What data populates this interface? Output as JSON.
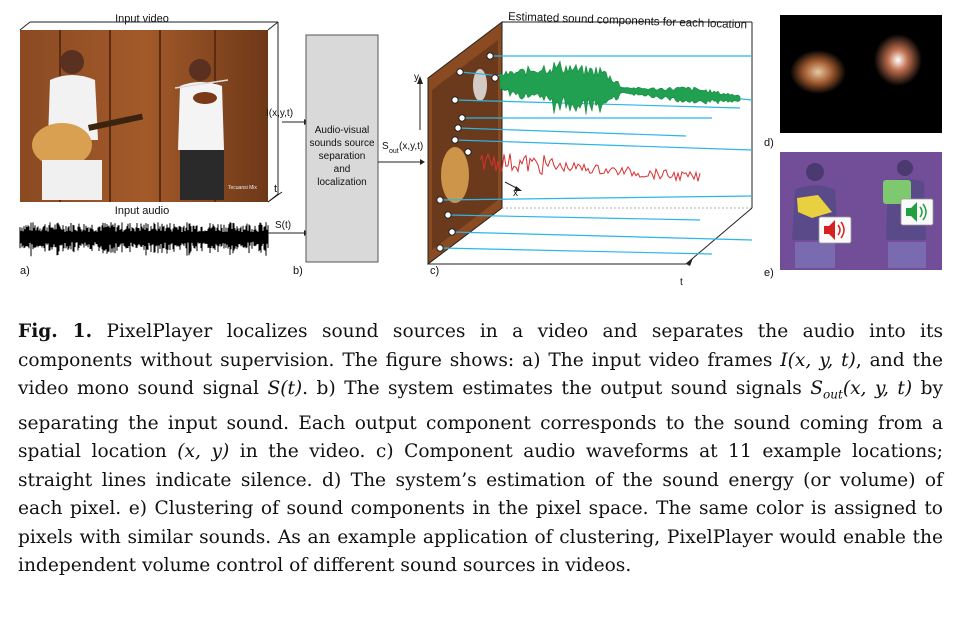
{
  "figure": {
    "panel_a": {
      "video_title": "Input video",
      "audio_title": "Input audio",
      "t_axis": "t",
      "label": "a)"
    },
    "panel_b": {
      "box_lines": [
        "Audio-visual",
        "sounds source",
        "separation",
        "and",
        "localization"
      ],
      "in_video_signal": "I(x,y,t)",
      "in_audio_signal": "S(t)",
      "out_signal_main": "S",
      "out_signal_sub": "out",
      "out_signal_args": "(x,y,t)",
      "label": "b)"
    },
    "panel_c": {
      "title": "Estimated sound components for each location",
      "axis_y": "y",
      "axis_x": "x",
      "axis_t": "t",
      "label": "c)"
    },
    "panel_d": {
      "label": "d)"
    },
    "panel_e": {
      "label": "e)"
    },
    "colors": {
      "green_wave": "#20a050",
      "red_wave": "#d83030",
      "cyan_line": "#2bb6e6",
      "box_fill": "#d9d9d9",
      "cluster_purple": "#6a4aa8"
    }
  },
  "caption": {
    "fig_label": "Fig. 1.",
    "s1": "PixelPlayer localizes sound sources in a video and separates the audio into its components without supervision. The figure shows: a) The input video frames ",
    "m1": "I(x, y, t)",
    "s2": ", and the video mono sound signal ",
    "m2": "S(t)",
    "s3": ". b) The system estimates the output sound signals ",
    "m3": "S",
    "m3sub": "out",
    "m3b": "(x, y, t)",
    "s4": " by separating the input sound. Each output component corresponds to the sound coming from a spatial location ",
    "m4": "(x, y)",
    "s5": " in the video. c) Component audio waveforms at 11 example locations; straight lines indicate silence. d) The system’s estimation of the sound energy (or volume) of each pixel. e) Clustering of sound components in the pixel space. The same color is assigned to pixels with similar sounds. As an example application of clustering, PixelPlayer would enable the independent volume control of different sound sources in videos."
  }
}
